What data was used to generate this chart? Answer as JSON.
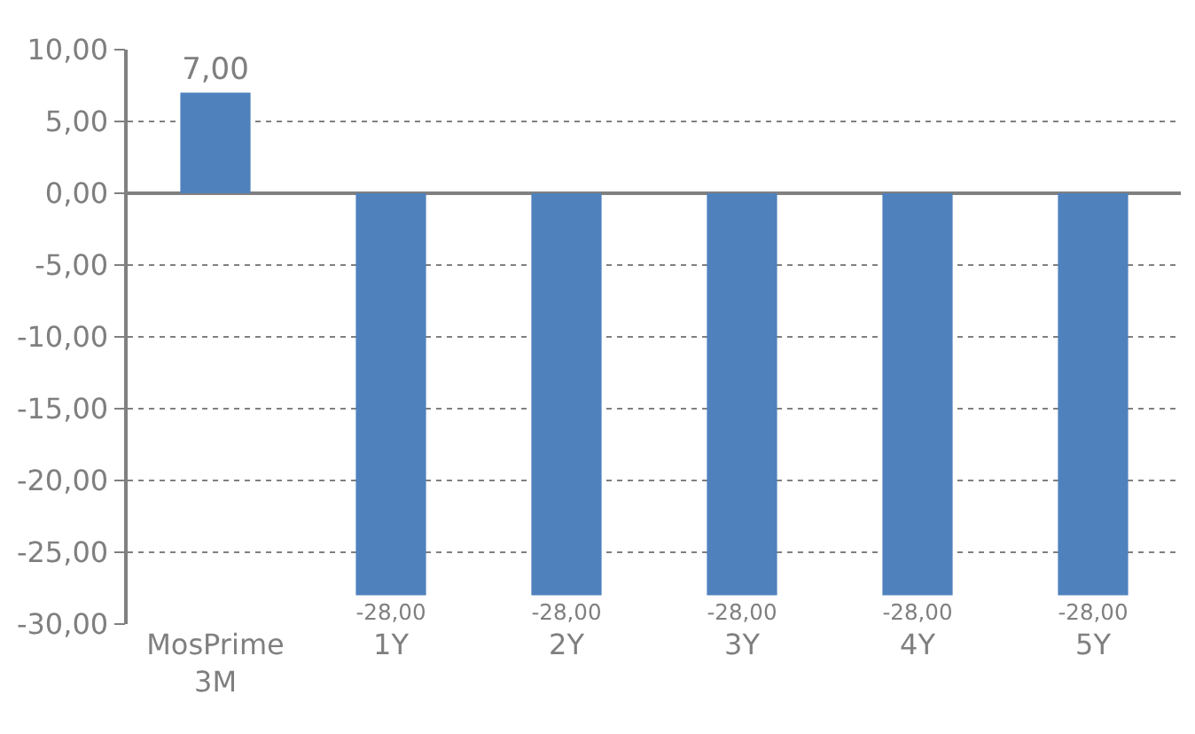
{
  "chart_data": {
    "type": "bar",
    "categories": [
      "MosPrime 3M",
      "1Y",
      "2Y",
      "3Y",
      "4Y",
      "5Y"
    ],
    "values": [
      7,
      -28,
      -28,
      -28,
      -28,
      -28
    ],
    "color": "#4f81bd",
    "value_labels": [
      "7,00",
      "-28,00",
      "-28,00",
      "-28,00",
      "-28,00",
      "-28,00"
    ],
    "ylim": [
      -30,
      10
    ],
    "yticks": [
      {
        "value": 10,
        "label": "10,00"
      },
      {
        "value": 5,
        "label": "5,00"
      },
      {
        "value": 0,
        "label": "0,00"
      },
      {
        "value": -5,
        "label": "-5,00"
      },
      {
        "value": -10,
        "label": "-10,00"
      },
      {
        "value": -15,
        "label": "-15,00"
      },
      {
        "value": -20,
        "label": "-20,00"
      },
      {
        "value": -25,
        "label": "-25,00"
      },
      {
        "value": -30,
        "label": "-30,00"
      }
    ],
    "grid": "y"
  }
}
